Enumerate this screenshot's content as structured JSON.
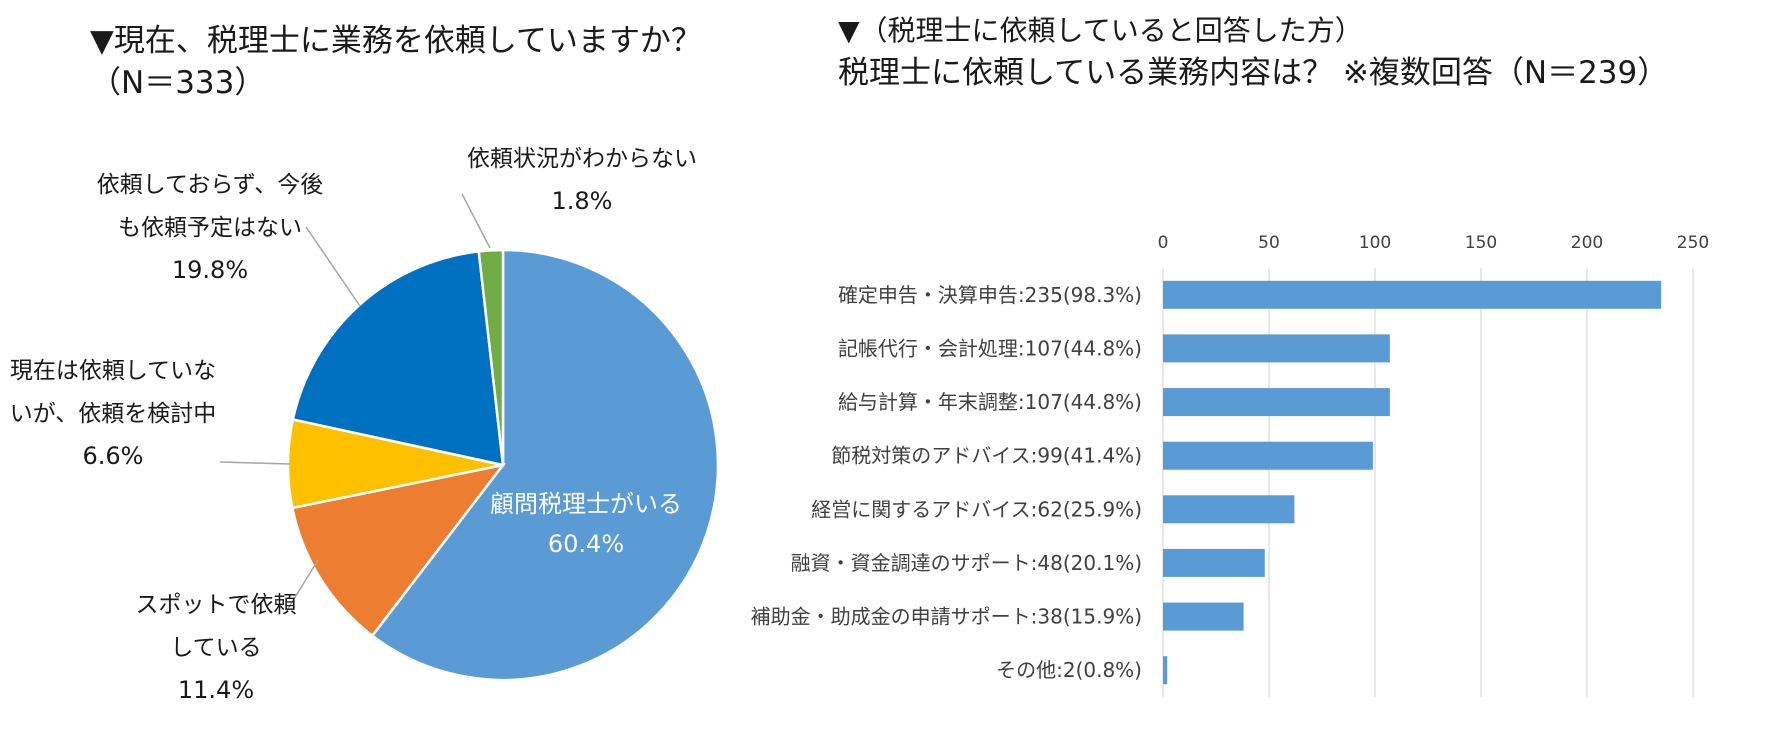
{
  "left": {
    "title_line1": "▼現在、税理士に業務を依頼していますか？",
    "title_line2": "（N＝333）"
  },
  "right": {
    "title_line1": "▼（税理士に依頼していると回答した方）",
    "title_line2": "税理士に依頼している業務内容は？ ※複数回答（N＝239）"
  },
  "chart_data": [
    {
      "type": "pie",
      "slices": [
        {
          "name": "顧問税理士がいる",
          "value": 60.4,
          "label_lines": [
            "顧問税理士がいる"
          ],
          "pct_label": "60.4%",
          "color": "#5b9bd5"
        },
        {
          "name": "スポットで依頼している",
          "value": 11.4,
          "label_lines": [
            "スポットで依頼",
            "している"
          ],
          "pct_label": "11.4%",
          "color": "#ed7d31"
        },
        {
          "name": "現在は依頼していないが、依頼を検討中",
          "value": 6.6,
          "label_lines": [
            "現在は依頼していな",
            "いが、依頼を検討中"
          ],
          "pct_label": "6.6%",
          "color": "#ffc000"
        },
        {
          "name": "依頼しておらず、今後も依頼予定はない",
          "value": 19.8,
          "label_lines": [
            "依頼しておらず、今後",
            "も依頼予定はない"
          ],
          "pct_label": "19.8%",
          "color": "#0070c0"
        },
        {
          "name": "依頼状況がわからない",
          "value": 1.8,
          "label_lines": [
            "依頼状況がわからない"
          ],
          "pct_label": "1.8%",
          "color": "#70ad47"
        }
      ]
    },
    {
      "type": "bar",
      "orientation": "horizontal",
      "categories": [
        "確定申告・決算申告:235(98.3%)",
        "記帳代行・会計処理:107(44.8%)",
        "給与計算・年末調整:107(44.8%)",
        "節税対策のアドバイス:99(41.4%)",
        "経営に関するアドバイス:62(25.9%)",
        "融資・資金調達のサポート:48(20.1%)",
        "補助金・助成金の申請サポート:38(15.9%)",
        "その他:2(0.8%)"
      ],
      "values": [
        235,
        107,
        107,
        99,
        62,
        48,
        38,
        2
      ],
      "xlim": [
        0,
        250
      ],
      "ticks": [
        "0",
        "50",
        "100",
        "150",
        "200",
        "250"
      ],
      "tick_values": [
        0,
        50,
        100,
        150,
        200,
        250
      ],
      "bar_color": "#5b9bd5",
      "grid": true,
      "axis_position": "top"
    }
  ]
}
